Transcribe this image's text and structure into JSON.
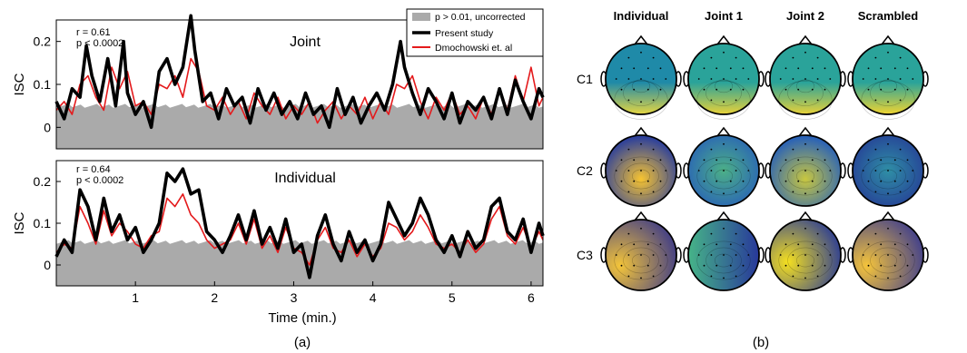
{
  "panel_labels": {
    "a": "(a)",
    "b": "(b)"
  },
  "legend": [
    {
      "label": "p > 0.01, uncorrected",
      "color": "#aaaaaa",
      "kind": "area"
    },
    {
      "label": "Present study",
      "color": "#000000",
      "kind": "line"
    },
    {
      "label": "Dmochowski et. al",
      "color": "#e41a1c",
      "kind": "line"
    }
  ],
  "chart_data": [
    {
      "type": "line",
      "title": "Joint",
      "ylabel": "ISC",
      "xlabel": "",
      "xlim": [
        0,
        6.15
      ],
      "ylim": [
        -0.05,
        0.25
      ],
      "yticks": [
        "0",
        "0.1",
        "0.2"
      ],
      "xticks": [],
      "stats": {
        "r": "r  = 0.61",
        "p": "p < 0.0002"
      },
      "threshold_level": 0.05,
      "series": [
        {
          "name": "Present study",
          "color": "#000000",
          "style": "bold",
          "x": [
            0,
            0.1,
            0.2,
            0.3,
            0.38,
            0.45,
            0.55,
            0.65,
            0.75,
            0.85,
            0.9,
            1.0,
            1.1,
            1.2,
            1.3,
            1.4,
            1.5,
            1.6,
            1.7,
            1.75,
            1.85,
            1.95,
            2.05,
            2.15,
            2.25,
            2.35,
            2.45,
            2.55,
            2.65,
            2.75,
            2.85,
            2.95,
            3.05,
            3.15,
            3.25,
            3.35,
            3.45,
            3.55,
            3.65,
            3.75,
            3.85,
            3.95,
            4.05,
            4.15,
            4.25,
            4.35,
            4.4,
            4.5,
            4.6,
            4.7,
            4.8,
            4.9,
            5.0,
            5.1,
            5.2,
            5.3,
            5.4,
            5.5,
            5.6,
            5.7,
            5.8,
            5.9,
            6.0,
            6.1,
            6.15
          ],
          "y": [
            0.06,
            0.02,
            0.09,
            0.07,
            0.19,
            0.12,
            0.06,
            0.16,
            0.05,
            0.2,
            0.08,
            0.03,
            0.06,
            0.0,
            0.13,
            0.16,
            0.1,
            0.14,
            0.26,
            0.18,
            0.06,
            0.08,
            0.02,
            0.09,
            0.05,
            0.07,
            0.01,
            0.09,
            0.04,
            0.08,
            0.03,
            0.06,
            0.02,
            0.08,
            0.03,
            0.05,
            0.0,
            0.09,
            0.03,
            0.07,
            0.01,
            0.05,
            0.08,
            0.04,
            0.1,
            0.2,
            0.14,
            0.08,
            0.03,
            0.09,
            0.06,
            0.02,
            0.08,
            0.01,
            0.06,
            0.04,
            0.07,
            0.02,
            0.09,
            0.03,
            0.11,
            0.06,
            0.02,
            0.09,
            0.07
          ]
        },
        {
          "name": "Dmochowski et. al",
          "color": "#e41a1c",
          "style": "thin",
          "x": [
            0,
            0.1,
            0.2,
            0.3,
            0.4,
            0.5,
            0.6,
            0.7,
            0.8,
            0.9,
            1.0,
            1.1,
            1.2,
            1.3,
            1.4,
            1.5,
            1.6,
            1.7,
            1.8,
            1.9,
            2.0,
            2.1,
            2.2,
            2.3,
            2.4,
            2.5,
            2.6,
            2.7,
            2.8,
            2.9,
            3.0,
            3.1,
            3.2,
            3.3,
            3.4,
            3.5,
            3.6,
            3.7,
            3.8,
            3.9,
            4.0,
            4.1,
            4.2,
            4.3,
            4.4,
            4.5,
            4.6,
            4.7,
            4.8,
            4.9,
            5.0,
            5.1,
            5.2,
            5.3,
            5.4,
            5.5,
            5.6,
            5.7,
            5.8,
            5.9,
            6.0,
            6.1,
            6.15
          ],
          "y": [
            0.04,
            0.06,
            0.03,
            0.1,
            0.12,
            0.07,
            0.04,
            0.14,
            0.09,
            0.13,
            0.05,
            0.06,
            0.03,
            0.1,
            0.09,
            0.12,
            0.07,
            0.16,
            0.13,
            0.05,
            0.04,
            0.07,
            0.03,
            0.06,
            0.02,
            0.08,
            0.05,
            0.03,
            0.07,
            0.02,
            0.05,
            0.03,
            0.06,
            0.01,
            0.04,
            0.06,
            0.02,
            0.05,
            0.03,
            0.07,
            0.02,
            0.06,
            0.03,
            0.1,
            0.09,
            0.12,
            0.06,
            0.02,
            0.07,
            0.04,
            0.08,
            0.03,
            0.05,
            0.02,
            0.07,
            0.03,
            0.09,
            0.04,
            0.12,
            0.06,
            0.14,
            0.05,
            0.07
          ]
        }
      ]
    },
    {
      "type": "line",
      "title": "Individual",
      "ylabel": "ISC",
      "xlabel": "Time (min.)",
      "xlim": [
        0,
        6.15
      ],
      "ylim": [
        -0.05,
        0.25
      ],
      "yticks": [
        "0",
        "0.1",
        "0.2"
      ],
      "xticks": [
        "1",
        "2",
        "3",
        "4",
        "5",
        "6"
      ],
      "stats": {
        "r": "r  = 0.64",
        "p": "p < 0.0002"
      },
      "threshold_level": 0.055,
      "series": [
        {
          "name": "Present study",
          "color": "#000000",
          "style": "bold",
          "x": [
            0,
            0.1,
            0.2,
            0.3,
            0.4,
            0.5,
            0.6,
            0.7,
            0.8,
            0.9,
            1.0,
            1.1,
            1.2,
            1.3,
            1.4,
            1.5,
            1.6,
            1.7,
            1.8,
            1.9,
            2.0,
            2.1,
            2.2,
            2.3,
            2.4,
            2.5,
            2.6,
            2.7,
            2.8,
            2.9,
            3.0,
            3.1,
            3.2,
            3.3,
            3.4,
            3.5,
            3.6,
            3.7,
            3.8,
            3.9,
            4.0,
            4.1,
            4.2,
            4.3,
            4.4,
            4.5,
            4.6,
            4.7,
            4.8,
            4.9,
            5.0,
            5.1,
            5.2,
            5.3,
            5.4,
            5.5,
            5.6,
            5.7,
            5.8,
            5.9,
            6.0,
            6.1,
            6.15
          ],
          "y": [
            0.02,
            0.06,
            0.03,
            0.18,
            0.14,
            0.06,
            0.16,
            0.08,
            0.12,
            0.06,
            0.09,
            0.03,
            0.06,
            0.1,
            0.22,
            0.2,
            0.23,
            0.17,
            0.18,
            0.08,
            0.06,
            0.03,
            0.07,
            0.12,
            0.06,
            0.13,
            0.05,
            0.09,
            0.04,
            0.11,
            0.03,
            0.05,
            -0.03,
            0.07,
            0.12,
            0.05,
            0.01,
            0.08,
            0.03,
            0.06,
            0.01,
            0.05,
            0.15,
            0.11,
            0.07,
            0.1,
            0.16,
            0.12,
            0.06,
            0.03,
            0.07,
            0.02,
            0.08,
            0.04,
            0.06,
            0.14,
            0.16,
            0.08,
            0.06,
            0.11,
            0.03,
            0.1,
            0.07
          ]
        },
        {
          "name": "Dmochowski et. al",
          "color": "#e41a1c",
          "style": "thin",
          "x": [
            0,
            0.1,
            0.2,
            0.3,
            0.4,
            0.5,
            0.6,
            0.7,
            0.8,
            0.9,
            1.0,
            1.1,
            1.2,
            1.3,
            1.4,
            1.5,
            1.6,
            1.7,
            1.8,
            1.9,
            2.0,
            2.1,
            2.2,
            2.3,
            2.4,
            2.5,
            2.6,
            2.7,
            2.8,
            2.9,
            3.0,
            3.1,
            3.2,
            3.3,
            3.4,
            3.5,
            3.6,
            3.7,
            3.8,
            3.9,
            4.0,
            4.1,
            4.2,
            4.3,
            4.4,
            4.5,
            4.6,
            4.7,
            4.8,
            4.9,
            5.0,
            5.1,
            5.2,
            5.3,
            5.4,
            5.5,
            5.6,
            5.7,
            5.8,
            5.9,
            6.0,
            6.1,
            6.15
          ],
          "y": [
            0.03,
            0.05,
            0.04,
            0.14,
            0.1,
            0.05,
            0.13,
            0.07,
            0.1,
            0.08,
            0.05,
            0.04,
            0.07,
            0.08,
            0.16,
            0.14,
            0.17,
            0.12,
            0.1,
            0.06,
            0.04,
            0.05,
            0.06,
            0.1,
            0.05,
            0.11,
            0.04,
            0.07,
            0.03,
            0.09,
            0.04,
            0.03,
            0.0,
            0.06,
            0.09,
            0.04,
            0.03,
            0.06,
            0.02,
            0.05,
            0.02,
            0.04,
            0.1,
            0.09,
            0.06,
            0.08,
            0.12,
            0.09,
            0.05,
            0.04,
            0.05,
            0.03,
            0.06,
            0.03,
            0.05,
            0.11,
            0.14,
            0.07,
            0.05,
            0.09,
            0.04,
            0.08,
            0.06
          ]
        }
      ]
    }
  ],
  "topomaps": {
    "columns": [
      "Individual",
      "Joint 1",
      "Joint 2",
      "Scrambled"
    ],
    "rows": [
      "C1",
      "C2",
      "C3"
    ],
    "maps": [
      [
        {
          "low": "#1f8aa8",
          "high": "#e5d641",
          "pattern": "top-bottom"
        },
        {
          "low": "#2aa39a",
          "high": "#e8d138",
          "pattern": "top-bottom"
        },
        {
          "low": "#2aa39a",
          "high": "#e8d138",
          "pattern": "top-bottom"
        },
        {
          "low": "#2aa39a",
          "high": "#f0d430",
          "pattern": "top-bottom"
        }
      ],
      [
        {
          "low": "#2b3f9c",
          "high": "#f7c431",
          "pattern": "blob-low-center"
        },
        {
          "low": "#2860b8",
          "high": "#4cb087",
          "pattern": "blob-center"
        },
        {
          "low": "#2861b8",
          "high": "#c8c740",
          "pattern": "blob-low-center"
        },
        {
          "low": "#253c95",
          "high": "#2f8fa6",
          "pattern": "blob-center"
        }
      ],
      [
        {
          "low": "#2c2e8f",
          "high": "#f3c43a",
          "pattern": "diag-right-dark"
        },
        {
          "low": "#28389a",
          "high": "#46b488",
          "pattern": "right-dark"
        },
        {
          "low": "#2a3b95",
          "high": "#f5e020",
          "pattern": "left-bright"
        },
        {
          "low": "#2c3095",
          "high": "#f5c43b",
          "pattern": "diag-right-dark"
        }
      ]
    ]
  }
}
